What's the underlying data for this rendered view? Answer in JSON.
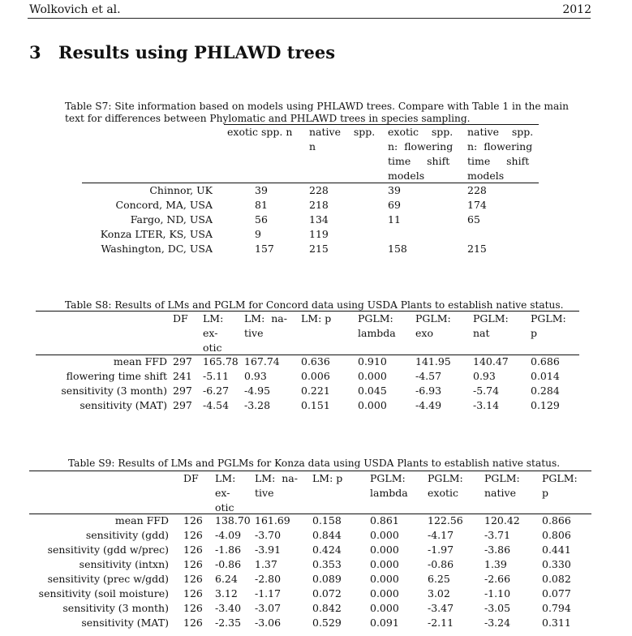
{
  "header": {
    "left": "Wolkovich et al.",
    "right": "2012"
  },
  "section": {
    "number": "3",
    "title": "Results using PHLAWD trees"
  },
  "tableS7": {
    "caption_line1": "Table S7: Site information based on models using PHLAWD trees. Compare with Table 1 in the main",
    "caption_line2": "text for differences between Phylomatic and PHLAWD trees in species sampling.",
    "headers": [
      [
        "exotic spp. n"
      ],
      [
        "native    spp.",
        "n"
      ],
      [
        "exotic    spp.",
        "n:  flowering",
        "time     shift",
        "models"
      ],
      [
        "native    spp.",
        "n:  flowering",
        "time     shift",
        "models"
      ]
    ],
    "rows": [
      {
        "site": "Chinnor, UK",
        "vals": [
          "39",
          "228",
          "39",
          "228"
        ]
      },
      {
        "site": "Concord, MA, USA",
        "vals": [
          "81",
          "218",
          "69",
          "174"
        ]
      },
      {
        "site": "Fargo, ND, USA",
        "vals": [
          "56",
          "134",
          "11",
          "65"
        ]
      },
      {
        "site": "Konza LTER, KS, USA",
        "vals": [
          "9",
          "119",
          "",
          ""
        ]
      },
      {
        "site": "Washington, DC, USA",
        "vals": [
          "157",
          "215",
          "158",
          "215"
        ]
      }
    ]
  },
  "tableS8": {
    "caption": "Table S8: Results of LMs and PGLM for Concord data using USDA Plants to establish native status.",
    "headers": [
      [
        "DF"
      ],
      [
        "LM:",
        "ex-",
        "otic"
      ],
      [
        "LM:  na-",
        "tive"
      ],
      [
        "LM: p"
      ],
      [
        "PGLM:",
        "lambda"
      ],
      [
        "PGLM:",
        "exo"
      ],
      [
        "PGLM:",
        "nat"
      ],
      [
        "PGLM:",
        "p"
      ]
    ],
    "rows": [
      {
        "label": "mean FFD",
        "vals": [
          "297",
          "165.78",
          "167.74",
          "0.636",
          "0.910",
          "141.95",
          "140.47",
          "0.686"
        ]
      },
      {
        "label": "flowering time shift",
        "vals": [
          "241",
          "-5.11",
          "0.93",
          "0.006",
          "0.000",
          "-4.57",
          "0.93",
          "0.014"
        ]
      },
      {
        "label": "sensitivity (3 month)",
        "vals": [
          "297",
          "-6.27",
          "-4.95",
          "0.221",
          "0.045",
          "-6.93",
          "-5.74",
          "0.284"
        ]
      },
      {
        "label": "sensitivity (MAT)",
        "vals": [
          "297",
          "-4.54",
          "-3.28",
          "0.151",
          "0.000",
          "-4.49",
          "-3.14",
          "0.129"
        ]
      }
    ]
  },
  "tableS9": {
    "caption": "Table S9: Results of LMs and PGLMs for Konza data using USDA Plants to establish native status.",
    "headers": [
      [
        "DF"
      ],
      [
        "LM:",
        "ex-",
        "otic"
      ],
      [
        "LM:  na-",
        "tive"
      ],
      [
        "LM: p"
      ],
      [
        "PGLM:",
        "lambda"
      ],
      [
        "PGLM:",
        "exotic"
      ],
      [
        "PGLM:",
        "native"
      ],
      [
        "PGLM:",
        "p"
      ]
    ],
    "rows": [
      {
        "label": "mean FFD",
        "vals": [
          "126",
          "138.70",
          "161.69",
          "0.158",
          "0.861",
          "122.56",
          "120.42",
          "0.866"
        ]
      },
      {
        "label": "sensitivity (gdd)",
        "vals": [
          "126",
          "-4.09",
          "-3.70",
          "0.844",
          "0.000",
          "-4.17",
          "-3.71",
          "0.806"
        ]
      },
      {
        "label": "sensitivity (gdd w/prec)",
        "vals": [
          "126",
          "-1.86",
          "-3.91",
          "0.424",
          "0.000",
          "-1.97",
          "-3.86",
          "0.441"
        ]
      },
      {
        "label": "sensitivity (intxn)",
        "vals": [
          "126",
          "-0.86",
          "1.37",
          "0.353",
          "0.000",
          "-0.86",
          "1.39",
          "0.330"
        ]
      },
      {
        "label": "sensitivity (prec w/gdd)",
        "vals": [
          "126",
          "6.24",
          "-2.80",
          "0.089",
          "0.000",
          "6.25",
          "-2.66",
          "0.082"
        ]
      },
      {
        "label": "sensitivity (soil moisture)",
        "vals": [
          "126",
          "3.12",
          "-1.17",
          "0.072",
          "0.000",
          "3.02",
          "-1.10",
          "0.077"
        ]
      },
      {
        "label": "sensitivity (3 month)",
        "vals": [
          "126",
          "-3.40",
          "-3.07",
          "0.842",
          "0.000",
          "-3.47",
          "-3.05",
          "0.794"
        ]
      },
      {
        "label": "sensitivity (MAT)",
        "vals": [
          "126",
          "-2.35",
          "-3.06",
          "0.529",
          "0.091",
          "-2.11",
          "-3.24",
          "0.311"
        ]
      }
    ]
  }
}
